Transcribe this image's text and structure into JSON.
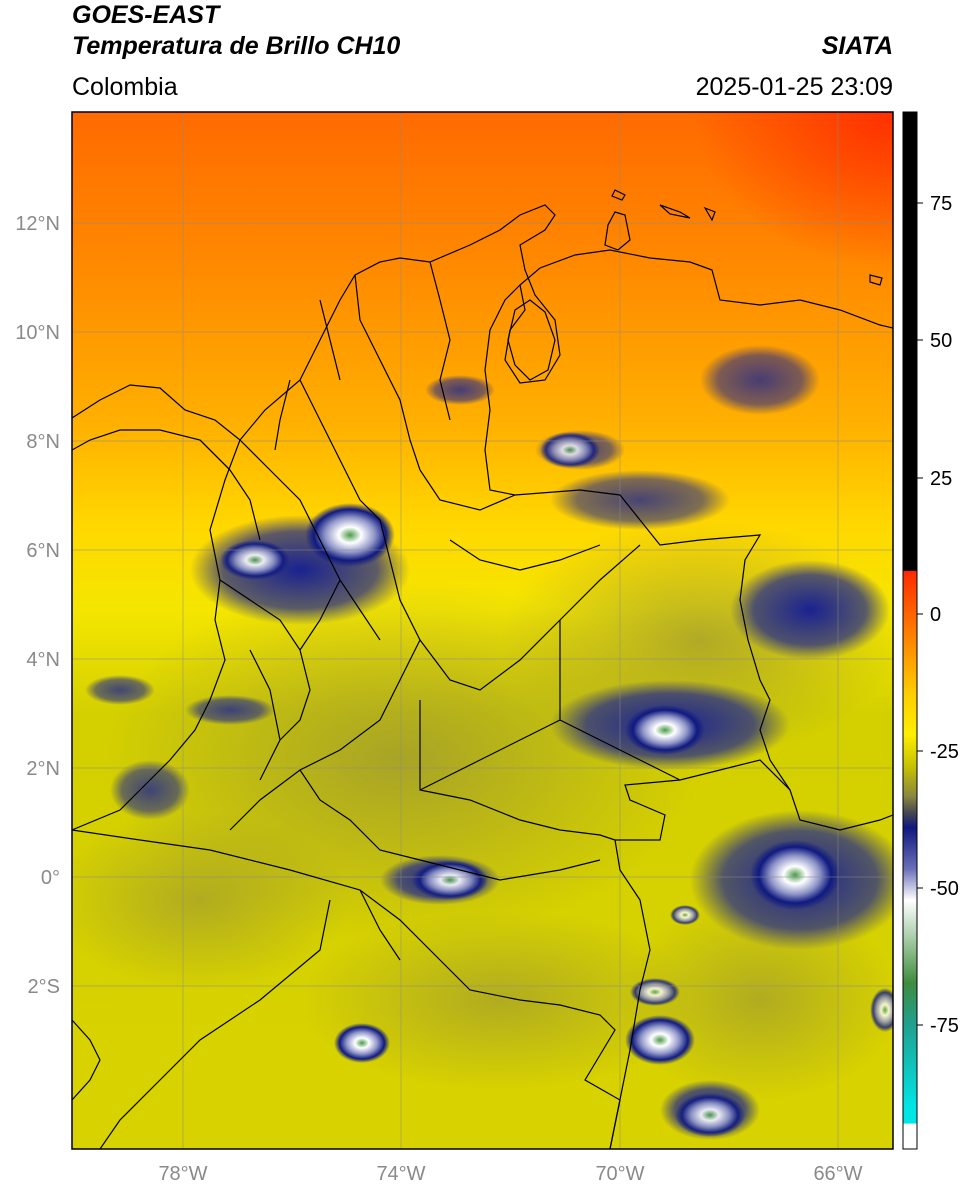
{
  "header": {
    "satellite": "GOES-EAST",
    "product": "Temperatura de Brillo CH10",
    "brand": "SIATA",
    "region": "Colombia",
    "timestamp": "2025-01-25 23:09"
  },
  "map": {
    "lat_labels": [
      "12°N",
      "10°N",
      "8°N",
      "6°N",
      "4°N",
      "2°N",
      "0°",
      "2°S"
    ],
    "lon_labels": [
      "78°W",
      "74°W",
      "70°W",
      "66°W"
    ]
  },
  "colorbar": {
    "tick_labels": [
      "75",
      "50",
      "25",
      "0",
      "-25",
      "-50",
      "-75"
    ],
    "colors": {
      "black": "#000000",
      "red": "#ff2a00",
      "orange": "#ff8c00",
      "yellow": "#ffee00",
      "olive": "#c8c400",
      "darkolive": "#6e6a3a",
      "navy": "#0f1880",
      "white": "#ffffff",
      "green": "#3f8c3f",
      "cyan": "#00e6e6"
    }
  }
}
